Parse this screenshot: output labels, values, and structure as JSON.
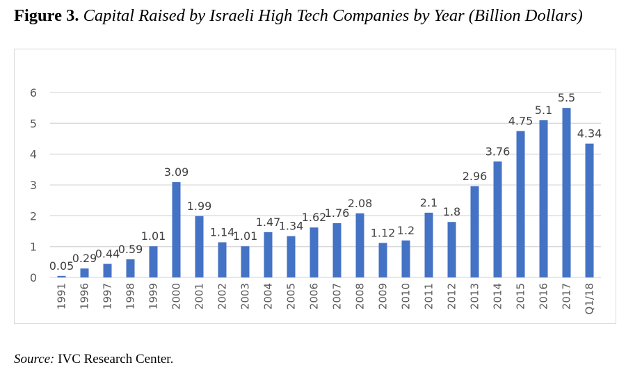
{
  "figure": {
    "label": "Figure 3.",
    "caption": "Capital Raised by Israeli High Tech Companies by Year (Billion Dollars)"
  },
  "source": {
    "label": "Source:",
    "text": "IVC Research Center."
  },
  "chart_data": {
    "type": "bar",
    "title": "Capital Raised by Israeli High Tech Companies by Year (Billion Dollars)",
    "xlabel": "",
    "ylabel": "",
    "categories": [
      "1991",
      "1996",
      "1997",
      "1998",
      "1999",
      "2000",
      "2001",
      "2002",
      "2003",
      "2004",
      "2005",
      "2006",
      "2007",
      "2008",
      "2009",
      "2010",
      "2011",
      "2012",
      "2013",
      "2014",
      "2015",
      "2016",
      "2017",
      "Q1/18"
    ],
    "values": [
      0.05,
      0.29,
      0.44,
      0.59,
      1.01,
      3.09,
      1.99,
      1.14,
      1.01,
      1.47,
      1.34,
      1.62,
      1.76,
      2.08,
      1.12,
      1.2,
      2.1,
      1.8,
      2.96,
      3.76,
      4.75,
      5.1,
      5.5,
      4.34
    ],
    "data_labels": [
      "0.05",
      "0.29",
      "0.44",
      "0.59",
      "1.01",
      "3.09",
      "1.99",
      "1.14",
      "1.01",
      "1.47",
      "1.34",
      "1.62",
      "1.76",
      "2.08",
      "1.12",
      "1.2",
      "2.1",
      "1.8",
      "2.96",
      "3.76",
      "4.75",
      "5.1",
      "5.5",
      "4.34"
    ],
    "ylim": [
      0,
      6
    ],
    "yticks": [
      0,
      1,
      2,
      3,
      4,
      5,
      6
    ],
    "grid": true,
    "legend": "none",
    "x_tick_rotation": "vertical",
    "colors": {
      "bar": "#4472C4",
      "grid": "#d9d9d9",
      "tick_text": "#595959",
      "border": "#d9d9d9"
    }
  }
}
